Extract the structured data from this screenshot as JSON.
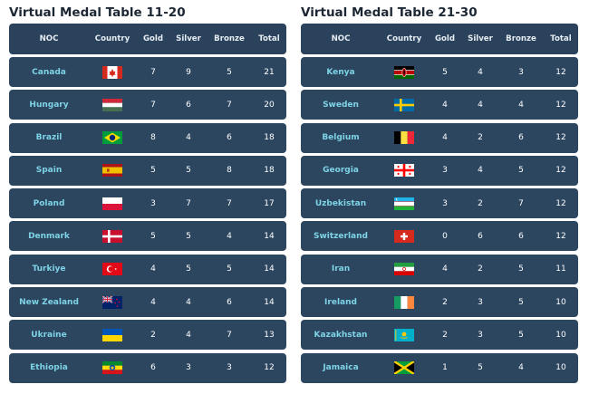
{
  "tables": [
    {
      "title": "Virtual Medal Table 11-20",
      "headers": {
        "noc": "NOC",
        "country": "Country",
        "gold": "Gold",
        "silver": "Silver",
        "bronze": "Bronze",
        "total": "Total"
      },
      "rows": [
        {
          "noc": "Canada",
          "flag": "canada",
          "gold": "7",
          "silver": "9",
          "bronze": "5",
          "total": "21"
        },
        {
          "noc": "Hungary",
          "flag": "hungary",
          "gold": "7",
          "silver": "6",
          "bronze": "7",
          "total": "20"
        },
        {
          "noc": "Brazil",
          "flag": "brazil",
          "gold": "8",
          "silver": "4",
          "bronze": "6",
          "total": "18"
        },
        {
          "noc": "Spain",
          "flag": "spain",
          "gold": "5",
          "silver": "5",
          "bronze": "8",
          "total": "18"
        },
        {
          "noc": "Poland",
          "flag": "poland",
          "gold": "3",
          "silver": "7",
          "bronze": "7",
          "total": "17"
        },
        {
          "noc": "Denmark",
          "flag": "denmark",
          "gold": "5",
          "silver": "5",
          "bronze": "4",
          "total": "14"
        },
        {
          "noc": "Turkiye",
          "flag": "turkiye",
          "gold": "4",
          "silver": "5",
          "bronze": "5",
          "total": "14"
        },
        {
          "noc": "New Zealand",
          "flag": "new-zealand",
          "gold": "4",
          "silver": "4",
          "bronze": "6",
          "total": "14"
        },
        {
          "noc": "Ukraine",
          "flag": "ukraine",
          "gold": "2",
          "silver": "4",
          "bronze": "7",
          "total": "13"
        },
        {
          "noc": "Ethiopia",
          "flag": "ethiopia",
          "gold": "6",
          "silver": "3",
          "bronze": "3",
          "total": "12"
        }
      ]
    },
    {
      "title": "Virtual Medal Table 21-30",
      "headers": {
        "noc": "NOC",
        "country": "Country",
        "gold": "Gold",
        "silver": "Silver",
        "bronze": "Bronze",
        "total": "Total"
      },
      "rows": [
        {
          "noc": "Kenya",
          "flag": "kenya",
          "gold": "5",
          "silver": "4",
          "bronze": "3",
          "total": "12"
        },
        {
          "noc": "Sweden",
          "flag": "sweden",
          "gold": "4",
          "silver": "4",
          "bronze": "4",
          "total": "12"
        },
        {
          "noc": "Belgium",
          "flag": "belgium",
          "gold": "4",
          "silver": "2",
          "bronze": "6",
          "total": "12"
        },
        {
          "noc": "Georgia",
          "flag": "georgia",
          "gold": "3",
          "silver": "4",
          "bronze": "5",
          "total": "12"
        },
        {
          "noc": "Uzbekistan",
          "flag": "uzbekistan",
          "gold": "3",
          "silver": "2",
          "bronze": "7",
          "total": "12"
        },
        {
          "noc": "Switzerland",
          "flag": "switzerland",
          "gold": "0",
          "silver": "6",
          "bronze": "6",
          "total": "12"
        },
        {
          "noc": "Iran",
          "flag": "iran",
          "gold": "4",
          "silver": "2",
          "bronze": "5",
          "total": "11"
        },
        {
          "noc": "Ireland",
          "flag": "ireland",
          "gold": "2",
          "silver": "3",
          "bronze": "5",
          "total": "10"
        },
        {
          "noc": "Kazakhstan",
          "flag": "kazakhstan",
          "gold": "2",
          "silver": "3",
          "bronze": "5",
          "total": "10"
        },
        {
          "noc": "Jamaica",
          "flag": "jamaica",
          "gold": "1",
          "silver": "5",
          "bronze": "4",
          "total": "10"
        }
      ]
    }
  ]
}
